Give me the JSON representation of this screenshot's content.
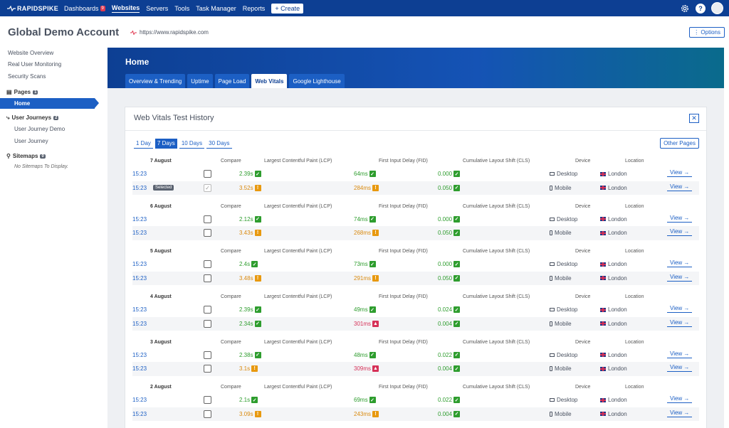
{
  "topnav": {
    "logo_text": "RAPIDSPIKE",
    "items": [
      {
        "label": "Dashboards",
        "badge": "9"
      },
      {
        "label": "Websites",
        "active": true
      },
      {
        "label": "Servers"
      },
      {
        "label": "Tools"
      },
      {
        "label": "Task Manager"
      },
      {
        "label": "Reports"
      }
    ],
    "create_label": "+ Create",
    "help_label": "?"
  },
  "header": {
    "account_title": "Global Demo Account",
    "url": "https://www.rapidspike.com",
    "options_label": "⋮ Options"
  },
  "sidebar": {
    "links": [
      "Website Overview",
      "Real User Monitoring",
      "Security Scans"
    ],
    "pages_label": "Pages",
    "pages_count": "1",
    "active_page": "Home",
    "journeys_label": "User Journeys",
    "journeys_count": "2",
    "journeys": [
      "User Journey Demo",
      "User Journey"
    ],
    "sitemaps_label": "Sitemaps",
    "sitemaps_count": "0",
    "sitemaps_empty": "No Sitemaps To Display."
  },
  "main": {
    "page_title": "Home",
    "tabs": [
      "Overview & Trending",
      "Uptime",
      "Page Load",
      "Web Vitals",
      "Google Lighthouse"
    ],
    "active_tab": "Web Vitals"
  },
  "card": {
    "title": "Web Vitals Test History",
    "close": "✕",
    "ranges": [
      "1 Day",
      "7 Days",
      "10 Days",
      "30 Days"
    ],
    "active_range": "7 Days",
    "other_pages": "Other Pages",
    "headers": {
      "compare": "Compare",
      "lcp": "Largest Contentful Paint (LCP)",
      "fid": "First Input Delay (FID)",
      "cls": "Cumulative Layout Shift (CLS)",
      "device": "Device",
      "location": "Location"
    },
    "view_label": "View →",
    "selected_label": "Selected",
    "colors": {
      "good": "#2e9d2e",
      "warn": "#d98a0f",
      "bad": "#d63158"
    },
    "groups": [
      {
        "date": "7 August",
        "rows": [
          {
            "time": "15:23",
            "lcp": "2.39s",
            "lcp_s": "good",
            "fid": "64ms",
            "fid_s": "good",
            "cls": "0.000",
            "cls_s": "good",
            "device": "Desktop",
            "location": "London"
          },
          {
            "time": "15:23",
            "selected": true,
            "lcp": "3.52s",
            "lcp_s": "warn",
            "fid": "284ms",
            "fid_s": "warn",
            "cls": "0.050",
            "cls_s": "good",
            "device": "Mobile",
            "location": "London"
          }
        ]
      },
      {
        "date": "6 August",
        "rows": [
          {
            "time": "15:23",
            "lcp": "2.12s",
            "lcp_s": "good",
            "fid": "74ms",
            "fid_s": "good",
            "cls": "0.000",
            "cls_s": "good",
            "device": "Desktop",
            "location": "London"
          },
          {
            "time": "15:23",
            "lcp": "3.43s",
            "lcp_s": "warn",
            "fid": "268ms",
            "fid_s": "warn",
            "cls": "0.050",
            "cls_s": "good",
            "device": "Mobile",
            "location": "London"
          }
        ]
      },
      {
        "date": "5 August",
        "rows": [
          {
            "time": "15:23",
            "lcp": "2.4s",
            "lcp_s": "good",
            "fid": "73ms",
            "fid_s": "good",
            "cls": "0.000",
            "cls_s": "good",
            "device": "Desktop",
            "location": "London"
          },
          {
            "time": "15:23",
            "lcp": "3.48s",
            "lcp_s": "warn",
            "fid": "291ms",
            "fid_s": "warn",
            "cls": "0.050",
            "cls_s": "good",
            "device": "Mobile",
            "location": "London"
          }
        ]
      },
      {
        "date": "4 August",
        "rows": [
          {
            "time": "15:23",
            "lcp": "2.39s",
            "lcp_s": "good",
            "fid": "49ms",
            "fid_s": "good",
            "cls": "0.024",
            "cls_s": "good",
            "device": "Desktop",
            "location": "London"
          },
          {
            "time": "15:23",
            "lcp": "2.34s",
            "lcp_s": "good",
            "fid": "301ms",
            "fid_s": "bad",
            "cls": "0.004",
            "cls_s": "good",
            "device": "Mobile",
            "location": "London"
          }
        ]
      },
      {
        "date": "3 August",
        "rows": [
          {
            "time": "15:23",
            "lcp": "2.38s",
            "lcp_s": "good",
            "fid": "48ms",
            "fid_s": "good",
            "cls": "0.022",
            "cls_s": "good",
            "device": "Desktop",
            "location": "London"
          },
          {
            "time": "15:23",
            "lcp": "3.1s",
            "lcp_s": "warn",
            "fid": "309ms",
            "fid_s": "bad",
            "cls": "0.004",
            "cls_s": "good",
            "device": "Mobile",
            "location": "London"
          }
        ]
      },
      {
        "date": "2 August",
        "rows": [
          {
            "time": "15:23",
            "lcp": "2.1s",
            "lcp_s": "good",
            "fid": "69ms",
            "fid_s": "good",
            "cls": "0.022",
            "cls_s": "good",
            "device": "Desktop",
            "location": "London"
          },
          {
            "time": "15:23",
            "lcp": "3.09s",
            "lcp_s": "warn",
            "fid": "243ms",
            "fid_s": "warn",
            "cls": "0.004",
            "cls_s": "good",
            "device": "Mobile",
            "location": "London"
          }
        ]
      }
    ]
  }
}
